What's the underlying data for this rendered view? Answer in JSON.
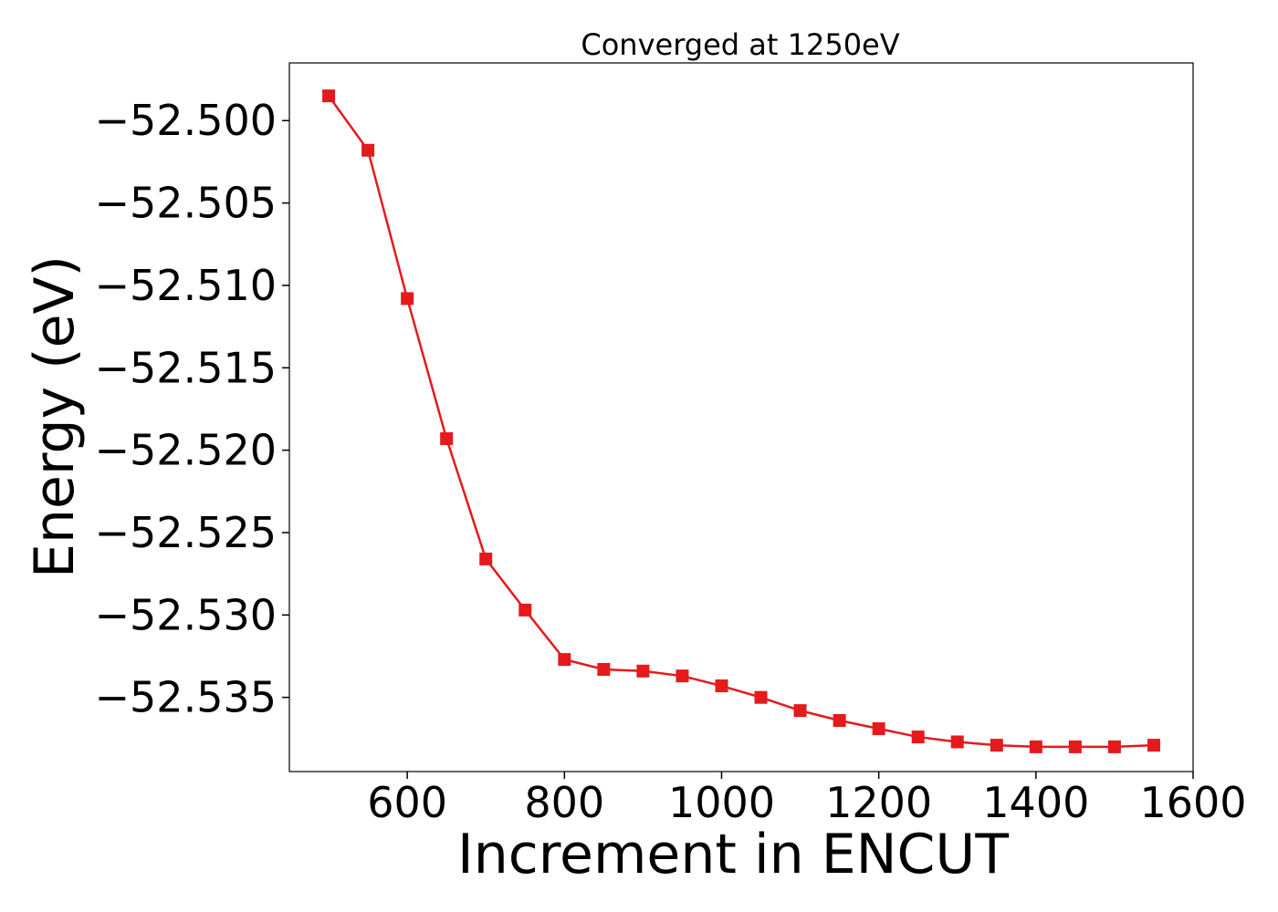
{
  "chart_data": {
    "type": "line",
    "title": "Converged at 1250eV",
    "xlabel": "Increment in ENCUT",
    "ylabel": "Energy (eV)",
    "xlim": [
      450,
      1600
    ],
    "ylim": [
      -52.5395,
      -52.4965
    ],
    "x_ticks": [
      600,
      800,
      1000,
      1200,
      1400,
      1600
    ],
    "x_tick_labels": [
      "600",
      "800",
      "1000",
      "1200",
      "1400",
      "1600"
    ],
    "y_ticks": [
      -52.5,
      -52.505,
      -52.51,
      -52.515,
      -52.52,
      -52.525,
      -52.53,
      -52.535
    ],
    "y_tick_labels": [
      "−52.500",
      "−52.505",
      "−52.510",
      "−52.515",
      "−52.520",
      "−52.525",
      "−52.530",
      "−52.535"
    ],
    "grid": false,
    "marker": "square",
    "line_color": "#e41a1c",
    "series": [
      {
        "x": [
          500,
          550,
          600,
          650,
          700,
          750,
          800,
          850,
          900,
          950,
          1000,
          1050,
          1100,
          1150,
          1200,
          1250,
          1300,
          1350,
          1400,
          1450,
          1500,
          1550
        ],
        "values": [
          -52.4985,
          -52.5018,
          -52.5108,
          -52.5193,
          -52.5266,
          -52.5297,
          -52.5327,
          -52.5333,
          -52.5334,
          -52.5337,
          -52.5343,
          -52.535,
          -52.5358,
          -52.5364,
          -52.5369,
          -52.5374,
          -52.5377,
          -52.5379,
          -52.538,
          -52.538,
          -52.538,
          -52.5379
        ]
      }
    ]
  }
}
